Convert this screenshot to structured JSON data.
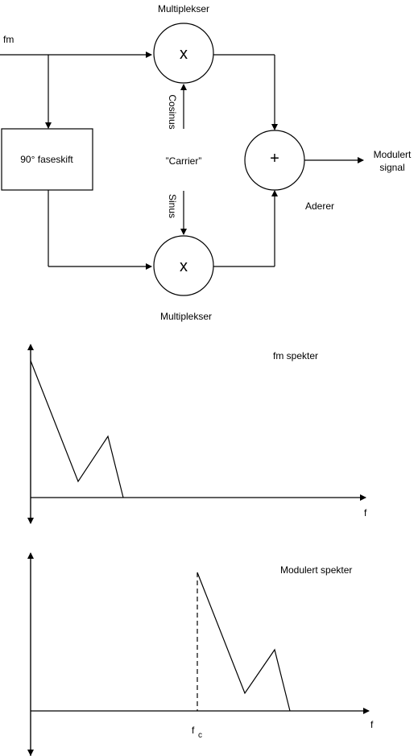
{
  "diagram": {
    "input_label": "fm",
    "top_mult_label": "Multiplekser",
    "bottom_mult_label": "Multiplekser",
    "mult_symbol": "x",
    "phase_shift_label": "90° faseskift",
    "carrier_label": "”Carrier”",
    "cos_label": "Cosinus",
    "sin_label": "Sinus",
    "adder_symbol": "+",
    "adder_label": "Aderer",
    "output_label_line1": "Modulert",
    "output_label_line2": "signal"
  },
  "spectra": {
    "fm_title": "fm spekter",
    "fm_axis_label": "f",
    "mod_title": "Modulert spekter",
    "mod_axis_label": "f",
    "fc_label": "f",
    "fc_subscript": "c"
  }
}
